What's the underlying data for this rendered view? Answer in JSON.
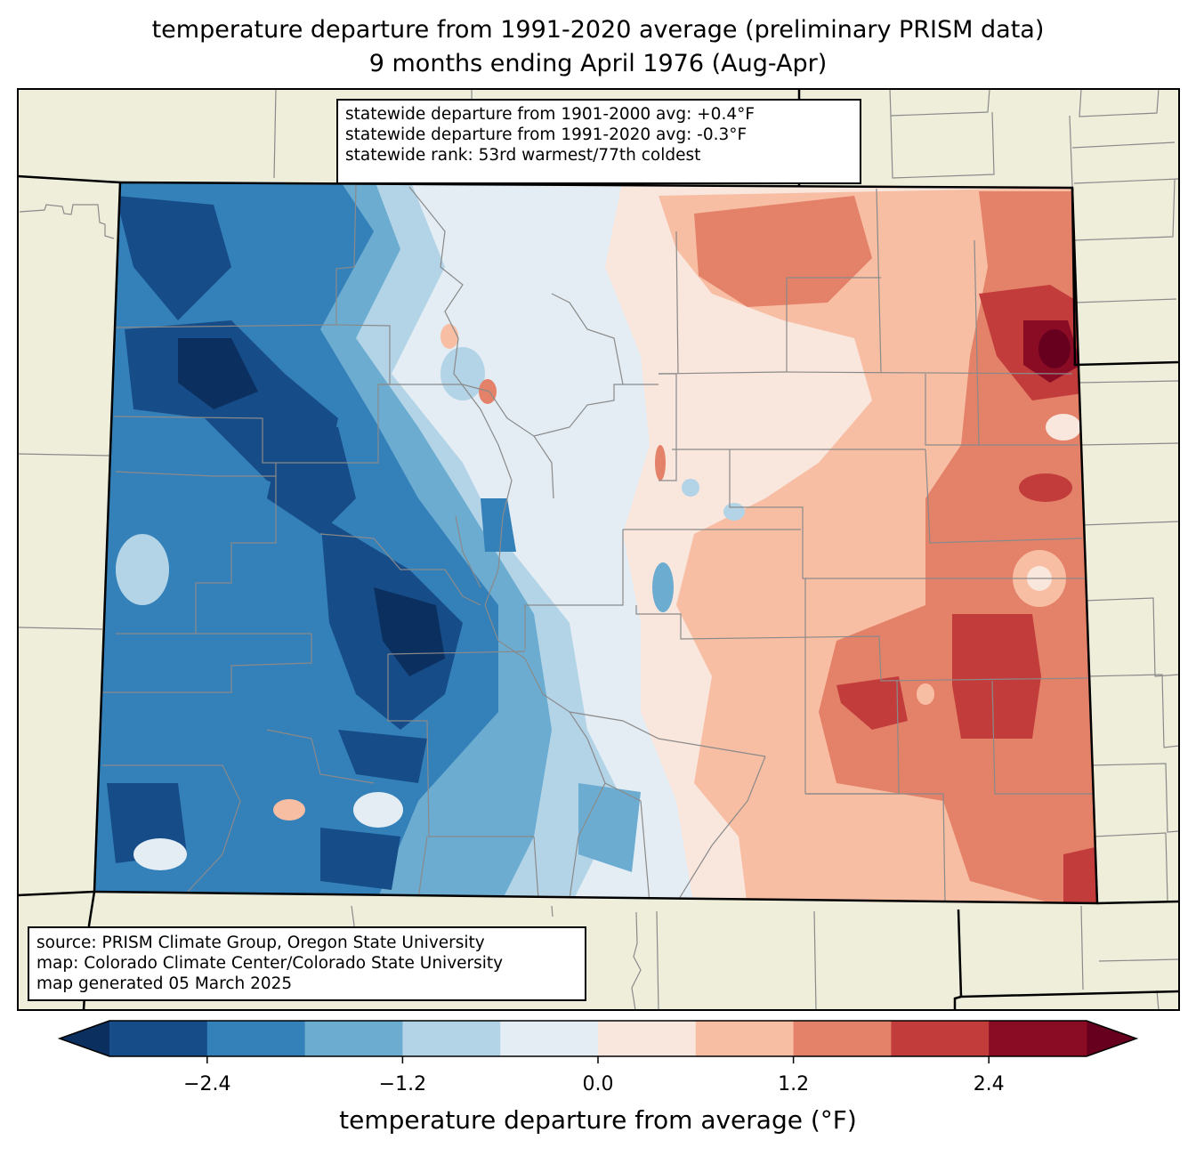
{
  "title": {
    "line1": "temperature departure from 1991-2020 average (preliminary PRISM data)",
    "line2": "9 months ending April 1976 (Aug-Apr)"
  },
  "stats": {
    "line1": "statewide departure from 1901-2000 avg: +0.4°F",
    "line2": "statewide departure from 1991-2020 avg: -0.3°F",
    "line3": "statewide rank: 53rd warmest/77th coldest"
  },
  "source": {
    "line1": "source: PRISM Climate Group, Oregon State University",
    "line2": "map: Colorado Climate Center/Colorado State University",
    "line3": "map generated 05 March 2025"
  },
  "colorbar": {
    "label": "temperature departure from average (°F)",
    "ticks": [
      "−2.4",
      "−1.2",
      "0.0",
      "1.2",
      "2.4"
    ],
    "tick_values": [
      -2.4,
      -1.2,
      0.0,
      1.2,
      2.4
    ],
    "boundaries": [
      -3.0,
      -2.4,
      -1.8,
      -1.2,
      -0.6,
      0.0,
      0.6,
      1.2,
      1.8,
      2.4,
      3.0
    ],
    "colors": [
      "#164c88",
      "#3480b9",
      "#6bacd0",
      "#b3d4e7",
      "#e4edf4",
      "#f9e6dd",
      "#f8bea4",
      "#e38169",
      "#c33c3c",
      "#8a0c24"
    ],
    "under_color": "#0b305f",
    "over_color": "#67001f"
  },
  "map": {
    "land_color": "#efeedb",
    "region": "Colorado"
  }
}
